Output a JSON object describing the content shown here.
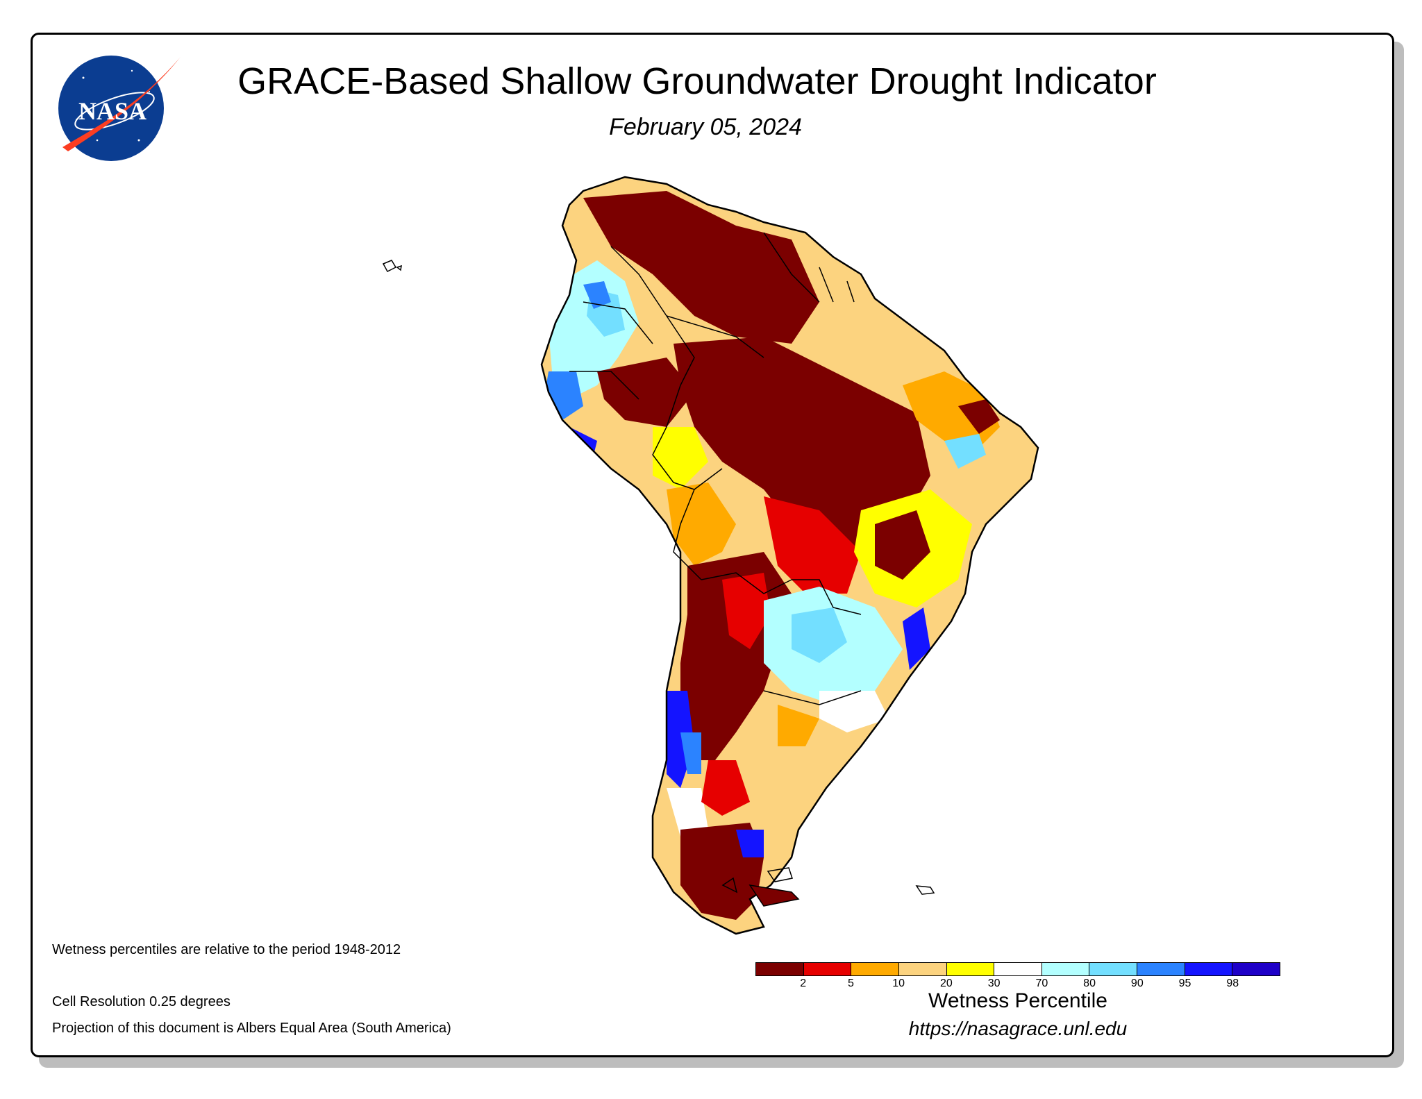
{
  "title": "GRACE-Based Shallow Groundwater Drought Indicator",
  "date": "February 05, 2024",
  "logo": {
    "label": "NASA",
    "colors": {
      "blue": "#0b3d91",
      "red": "#fc3d21"
    }
  },
  "notes": {
    "period": "Wetness percentiles are relative to the period 1948-2012",
    "resolution": "Cell Resolution 0.25 degrees",
    "projection": "Projection of this document is Albers Equal Area (South America)"
  },
  "legend": {
    "title": "Wetness Percentile",
    "url": "https://nasagrace.unl.edu",
    "ticks": [
      "2",
      "5",
      "10",
      "20",
      "30",
      "70",
      "80",
      "90",
      "95",
      "98"
    ],
    "colors": [
      "#7b0000",
      "#e60000",
      "#ffaa00",
      "#fcd37f",
      "#ffff00",
      "#ffffff",
      "#b3ffff",
      "#73dfff",
      "#2b83ff",
      "#1414ff",
      "#1e00c8"
    ]
  }
}
